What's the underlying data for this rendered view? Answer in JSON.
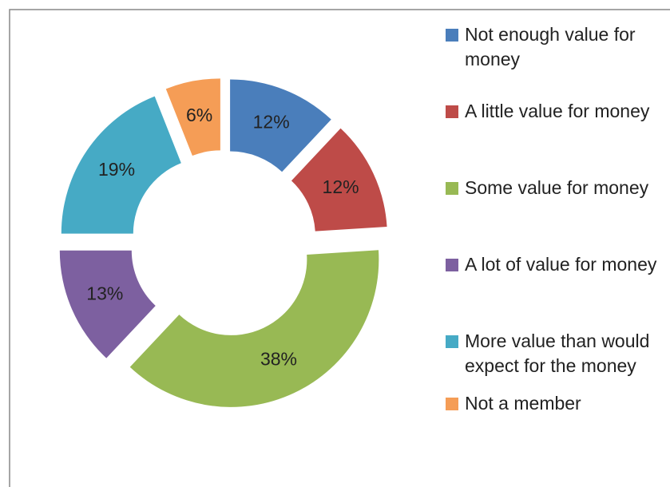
{
  "chart_data": {
    "type": "pie",
    "categories": [
      "Not enough value for money",
      "A little value for money",
      "Some value for money",
      "A lot of value for money",
      "More value than would expect for the money",
      "Not a member"
    ],
    "values": [
      12,
      12,
      38,
      13,
      19,
      6
    ],
    "value_labels": [
      "12%",
      "12%",
      "38%",
      "13%",
      "19%",
      "6%"
    ],
    "colors": [
      "#4a7ebb",
      "#be4b48",
      "#98b954",
      "#7d60a0",
      "#46aac5",
      "#f59d56"
    ],
    "legend": "right"
  }
}
